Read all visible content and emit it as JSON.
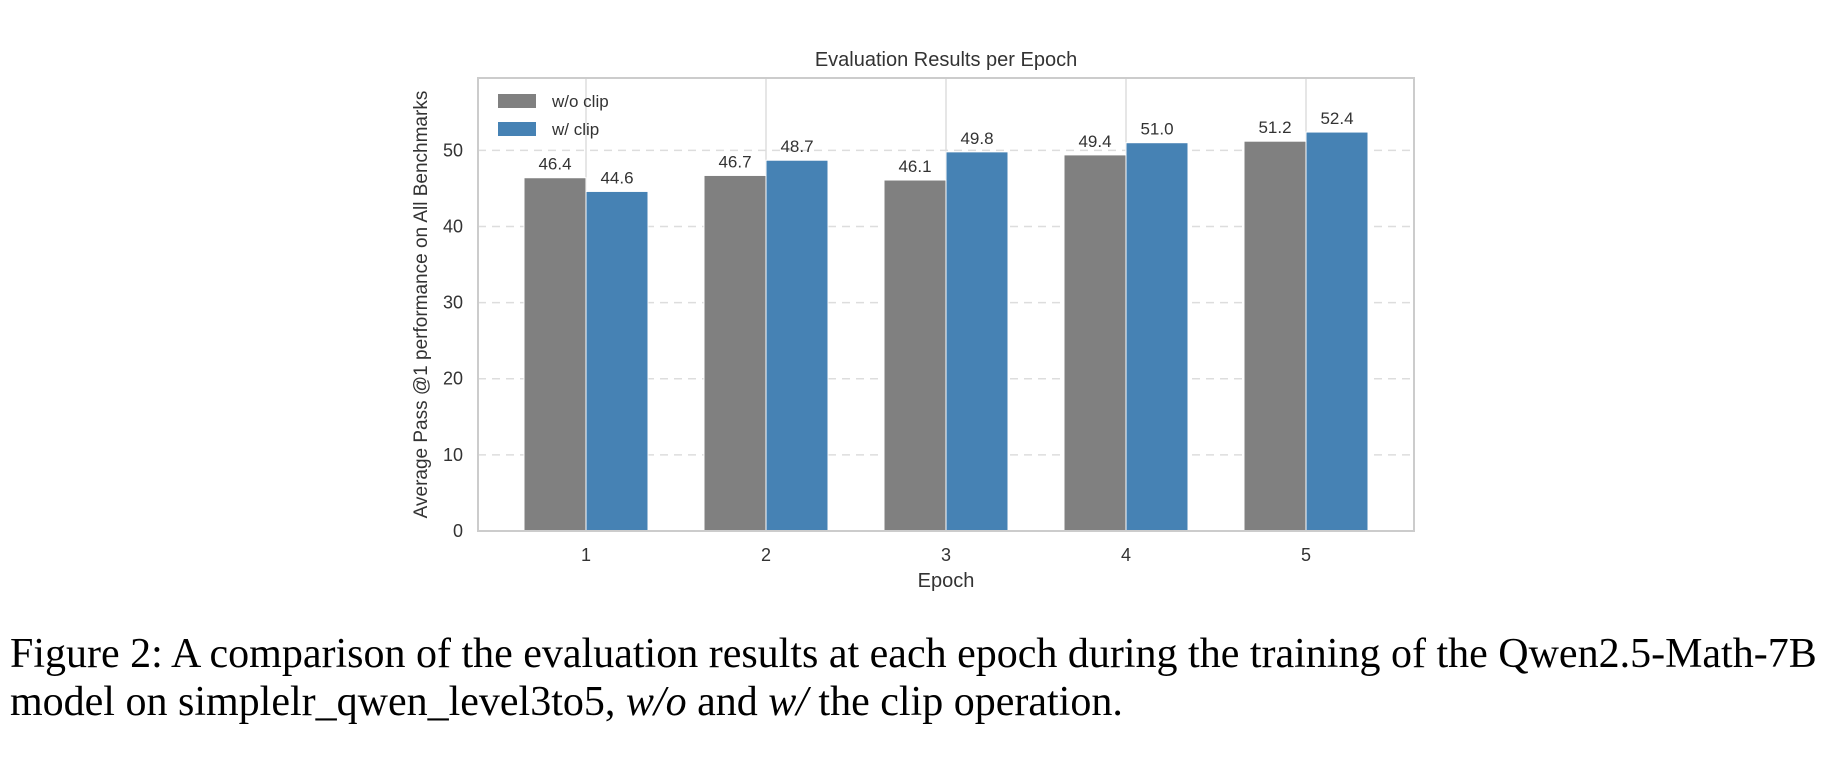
{
  "caption": {
    "prefix": "Figure 2: A comparison of the evaluation results at each epoch during the training of the Qwen2.5-Math-7B model on simplelr_qwen_level3to5, ",
    "wo": "w/o",
    "and": " and ",
    "w": "w/",
    "suffix": " the clip operation."
  },
  "colors": {
    "wo_clip": "#808080",
    "w_clip": "#4682b4",
    "grid": "#dddddd",
    "frame": "#cccccc"
  },
  "chart_data": {
    "type": "bar",
    "title": "Evaluation Results per Epoch",
    "xlabel": "Epoch",
    "ylabel": "Average Pass @1 performance on All Benchmarks",
    "categories": [
      "1",
      "2",
      "3",
      "4",
      "5"
    ],
    "series": [
      {
        "name": "w/o clip",
        "values": [
          46.4,
          46.7,
          46.1,
          49.4,
          51.2
        ]
      },
      {
        "name": "w/ clip",
        "values": [
          44.6,
          48.7,
          49.8,
          51.0,
          52.4
        ]
      }
    ],
    "ylim": [
      0,
      59.5
    ],
    "yticks": [
      0,
      10,
      20,
      30,
      40,
      50
    ],
    "grid": true,
    "legend": "top-left"
  }
}
